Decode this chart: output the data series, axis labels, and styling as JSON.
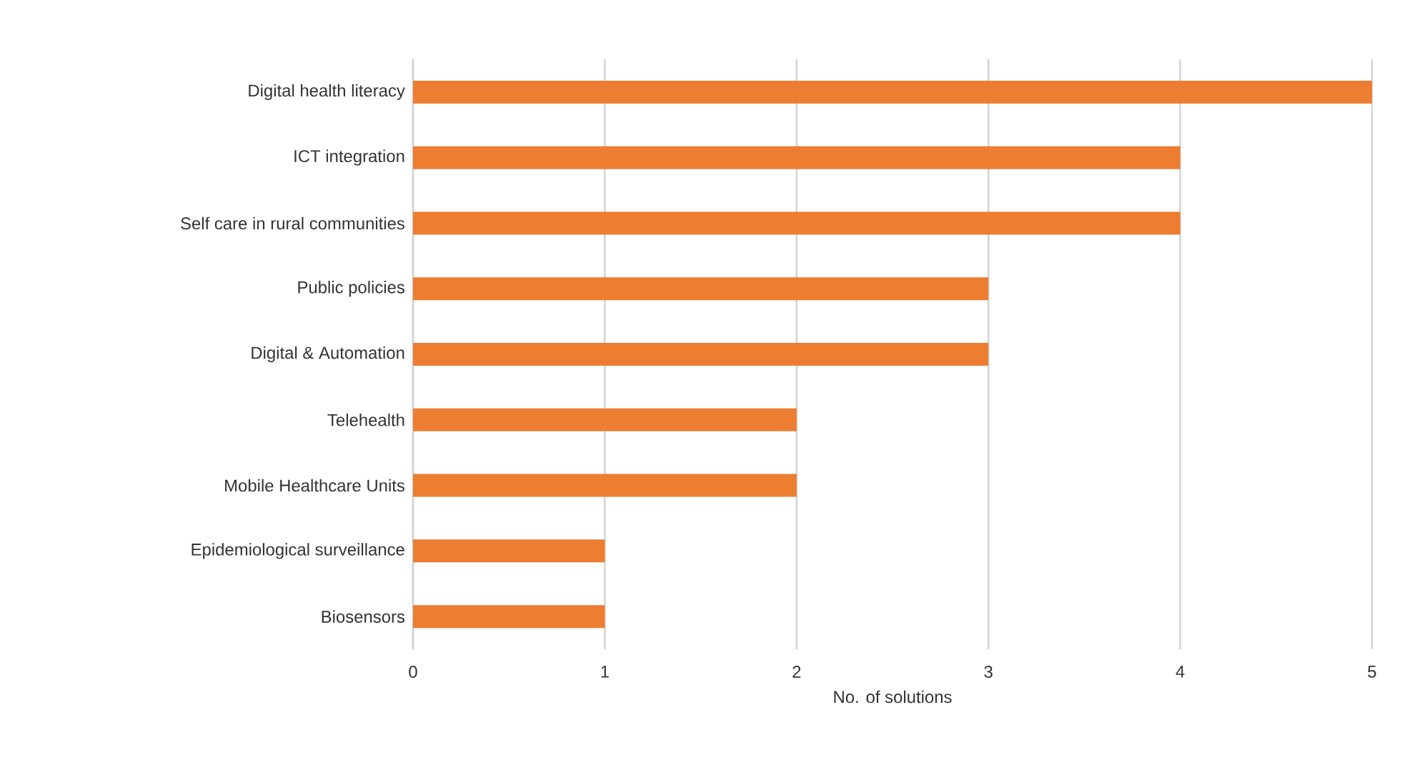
{
  "chart_data": {
    "type": "bar",
    "orientation": "horizontal",
    "xlabel": "No. of solutions",
    "categories": [
      "Digital health literacy",
      "ICT integration",
      "Self care in rural communities",
      "Public policies",
      "Digital & Automation",
      "Telehealth",
      "Mobile Healthcare Units",
      "Epidemiological surveillance",
      "Biosensors"
    ],
    "values": [
      5,
      4,
      4,
      3,
      3,
      2,
      2,
      1,
      1
    ],
    "color": "#ed7d31",
    "xlim": [
      0,
      5
    ],
    "xticks": [
      0,
      1,
      2,
      3,
      4,
      5
    ],
    "grid": "x"
  }
}
